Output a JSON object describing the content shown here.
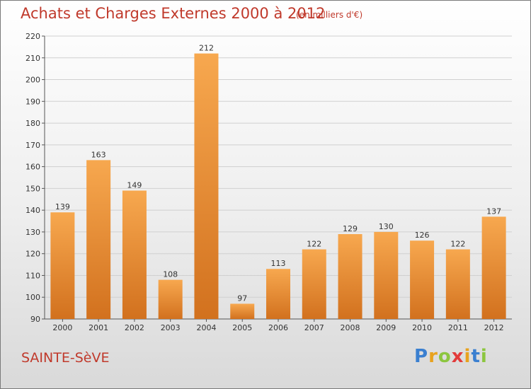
{
  "header": {
    "title": "Achats et Charges Externes 2000 à 2012",
    "unit": "(en milliers d'€)"
  },
  "footer": {
    "location": "SAINTE-SèVE",
    "logo": "Proxiti"
  },
  "colors": {
    "bar_light": "#f7a84f",
    "bar_dark": "#d2711e",
    "text": "#c0392b",
    "grid": "#d0d0d0"
  },
  "chart_data": {
    "type": "bar",
    "title": "Achats et Charges Externes 2000 à 2012",
    "ylabel": "",
    "xlabel": "",
    "categories": [
      "2000",
      "2001",
      "2002",
      "2003",
      "2004",
      "2005",
      "2006",
      "2007",
      "2008",
      "2009",
      "2010",
      "2011",
      "2012"
    ],
    "values": [
      139,
      163,
      149,
      108,
      212,
      97,
      113,
      122,
      129,
      130,
      126,
      122,
      137
    ],
    "ylim": [
      90,
      220
    ],
    "yticks": [
      90,
      100,
      110,
      120,
      130,
      140,
      150,
      160,
      170,
      180,
      190,
      200,
      210,
      220
    ],
    "grid": true,
    "data_labels": true
  }
}
